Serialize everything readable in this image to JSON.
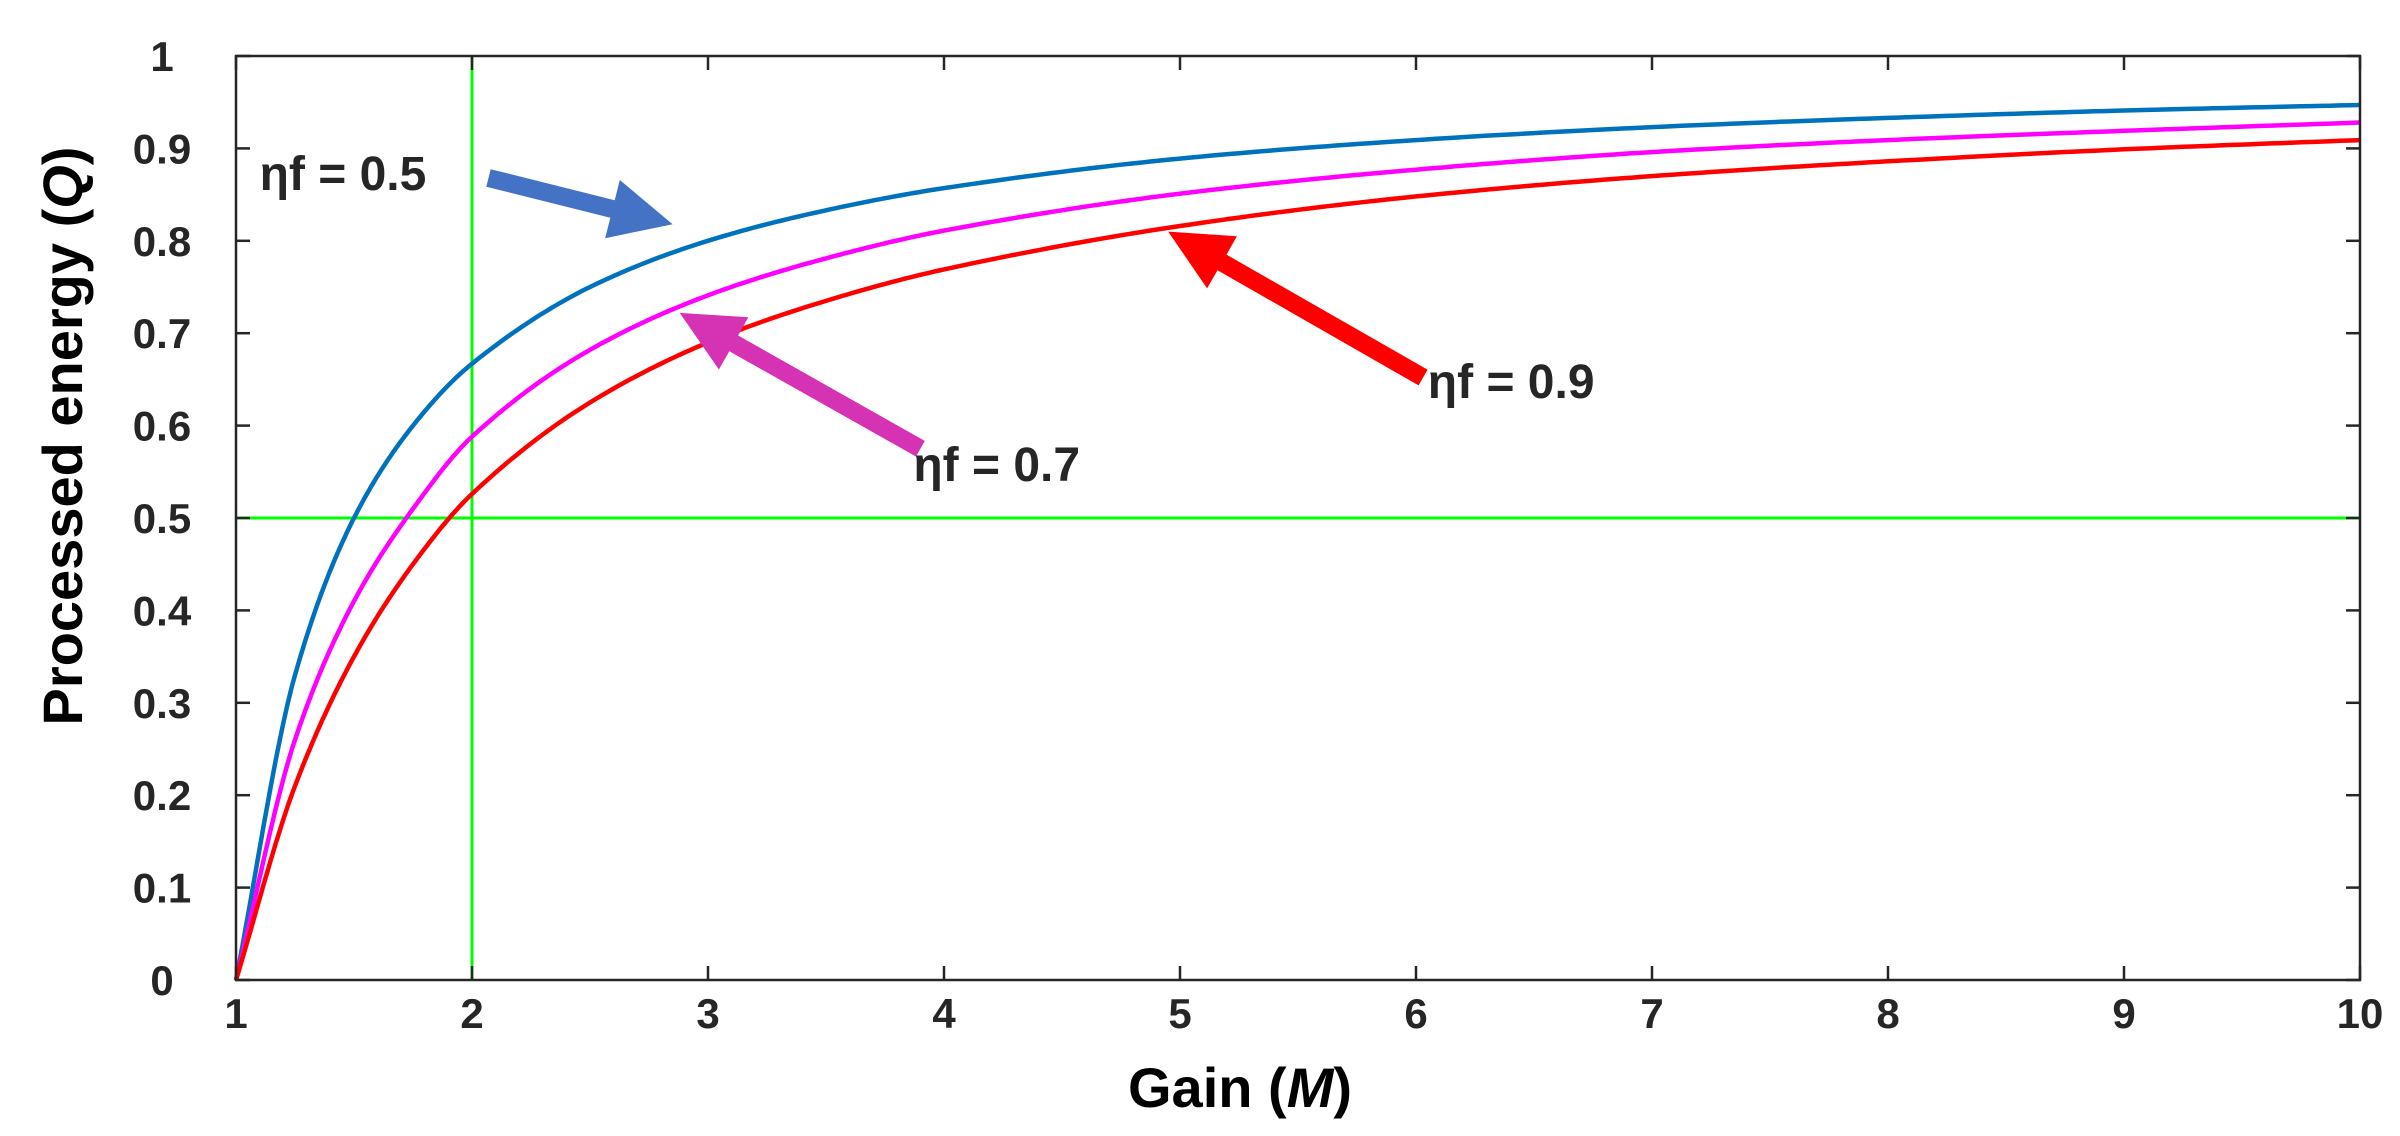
{
  "chart_data": {
    "type": "line",
    "xlabel": "Gain (",
    "xlabel_var": "M",
    "xlabel_close": ")",
    "ylabel": "Processed energy  (",
    "ylabel_var": "Q",
    "ylabel_close": ")",
    "xlim": [
      1,
      10
    ],
    "ylim": [
      0,
      1
    ],
    "xticks": [
      1,
      2,
      3,
      4,
      5,
      6,
      7,
      8,
      9,
      10
    ],
    "yticks": [
      0,
      0.1,
      0.2,
      0.3,
      0.4,
      0.5,
      0.6,
      0.7,
      0.8,
      0.9,
      1
    ],
    "grid": false,
    "series": [
      {
        "name": "ηf = 0.5",
        "color": "#0072BD",
        "x": [
          1,
          1.25,
          1.5,
          1.75,
          2,
          2.5,
          3,
          3.5,
          4,
          5,
          6,
          7,
          8,
          9,
          10
        ],
        "y": [
          0,
          0.33,
          0.5,
          0.6,
          0.667,
          0.75,
          0.8,
          0.833,
          0.857,
          0.889,
          0.909,
          0.923,
          0.933,
          0.941,
          0.947
        ]
      },
      {
        "name": "ηf = 0.7",
        "color": "#FF00FF",
        "x": [
          1,
          1.25,
          1.5,
          1.75,
          2,
          2.5,
          3,
          3.5,
          4,
          5,
          6,
          7,
          8,
          9,
          10
        ],
        "y": [
          0,
          0.26,
          0.41,
          0.51,
          0.588,
          0.682,
          0.741,
          0.781,
          0.811,
          0.851,
          0.877,
          0.896,
          0.909,
          0.919,
          0.928
        ]
      },
      {
        "name": "ηf = 0.9",
        "color": "#FF0000",
        "x": [
          1,
          1.25,
          1.5,
          1.75,
          2,
          2.5,
          3,
          3.5,
          4,
          5,
          6,
          7,
          8,
          9,
          10
        ],
        "y": [
          0,
          0.21,
          0.35,
          0.45,
          0.526,
          0.625,
          0.69,
          0.735,
          0.769,
          0.816,
          0.848,
          0.87,
          0.886,
          0.899,
          0.909
        ]
      }
    ],
    "reference_lines": [
      {
        "orientation": "vertical",
        "value": 2,
        "color": "#00FF00"
      },
      {
        "orientation": "horizontal",
        "value": 0.5,
        "color": "#00FF00"
      }
    ],
    "annotations": [
      {
        "text": "ηf = 0.5",
        "arrow_color": "#4472C4",
        "text_x": 1.1,
        "text_y": 0.855,
        "tail_x": 2.07,
        "tail_y": 0.868,
        "head_x": 2.85,
        "head_y": 0.818
      },
      {
        "text": "ηf = 0.7",
        "arrow_color": "#D633B4",
        "text_x": 3.87,
        "text_y": 0.54,
        "tail_x": 3.9,
        "tail_y": 0.575,
        "head_x": 2.88,
        "head_y": 0.722
      },
      {
        "text": "ηf = 0.9",
        "arrow_color": "#FF0000",
        "text_x": 6.05,
        "text_y": 0.63,
        "tail_x": 6.03,
        "tail_y": 0.652,
        "head_x": 4.95,
        "head_y": 0.81
      }
    ]
  }
}
